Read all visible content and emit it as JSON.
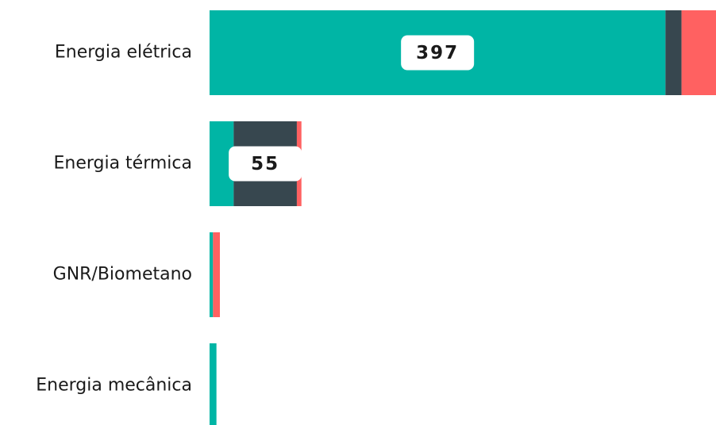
{
  "chart_data": {
    "type": "stacked-bar-horizontal",
    "categories": [
      "Energia elétrica",
      "Energia térmica",
      "GNR/Biometano",
      "Energia mecânica"
    ],
    "series": [
      {
        "color": "#00b5a5",
        "values": [
          397,
          21,
          3,
          6
        ],
        "value_labels": [
          "397",
          null,
          null,
          null
        ]
      },
      {
        "color": "#37474f",
        "values": [
          14,
          55,
          0,
          0
        ],
        "value_labels": [
          null,
          "55",
          null,
          null
        ]
      },
      {
        "color": "#ff6161",
        "values": [
          30,
          4,
          6,
          0
        ],
        "value_labels": [
          null,
          null,
          null,
          null
        ]
      }
    ]
  }
}
